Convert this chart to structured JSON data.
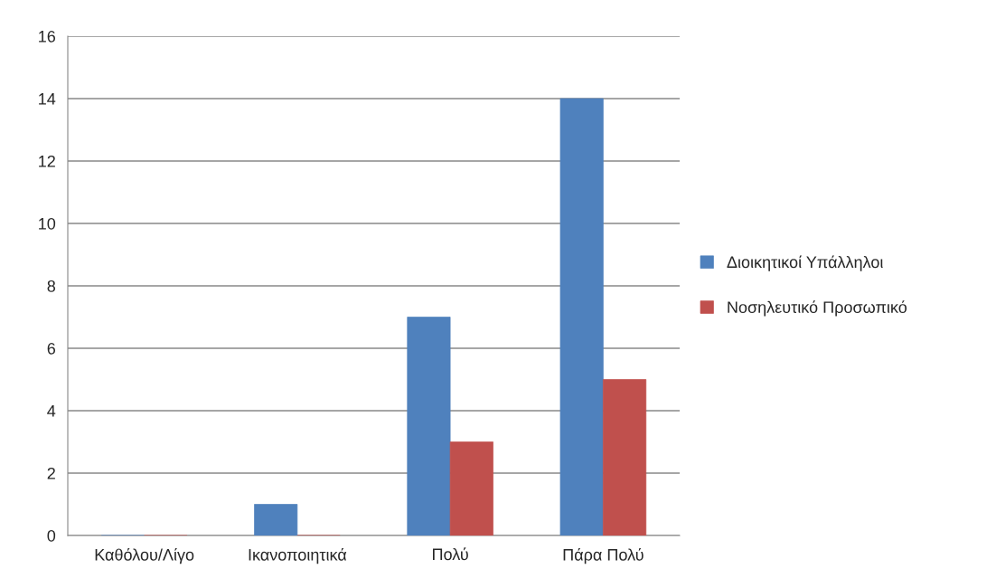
{
  "chart_data": {
    "type": "bar",
    "categories": [
      "Καθόλου/Λίγο",
      "Ικανοποιητικά",
      "Πολύ",
      "Πάρα Πολύ"
    ],
    "series": [
      {
        "name": "Διοικητικοί Υπάλληλοι",
        "color": "#4f81bd",
        "values": [
          0,
          1,
          7,
          14
        ]
      },
      {
        "name": "Νοσηλευτικό Προσωπικό",
        "color": "#c0504d",
        "values": [
          0,
          0,
          3,
          5
        ]
      }
    ],
    "ylim": [
      0,
      16
    ],
    "yticks": [
      0,
      2,
      4,
      6,
      8,
      10,
      12,
      14,
      16
    ],
    "grid": "y",
    "legend": "right"
  }
}
